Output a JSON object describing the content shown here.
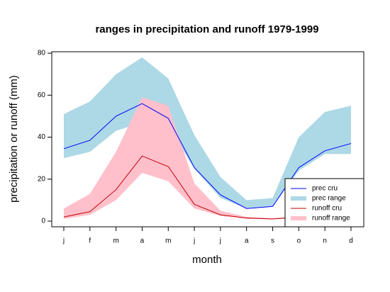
{
  "chart_data": {
    "type": "band-line",
    "title": "ranges in precipitation and runoff 1979-1999",
    "x_label": "month",
    "y_label": "precipitation or runoff (mm)",
    "categories": [
      "j",
      "f",
      "m",
      "a",
      "m",
      "j",
      "j",
      "a",
      "s",
      "o",
      "n",
      "d"
    ],
    "ylim": [
      -2.7,
      80.7
    ],
    "yticks": [
      0,
      20,
      40,
      60,
      80
    ],
    "legend": "bottom-right",
    "series": [
      {
        "name": "prec range",
        "kind": "range",
        "color": "#add8e6",
        "upper": [
          51,
          57,
          70,
          78,
          68,
          41,
          21,
          10,
          11,
          40,
          52,
          55
        ],
        "lower": [
          30,
          33,
          43,
          47,
          45,
          25,
          11,
          6,
          7,
          24,
          32,
          32
        ]
      },
      {
        "name": "runoff range",
        "kind": "range",
        "color": "#ffc0cb",
        "upper": [
          6,
          13,
          33,
          59,
          55,
          18,
          5,
          2,
          1.5,
          2,
          2,
          2
        ],
        "lower": [
          1,
          3,
          10,
          23,
          19,
          6,
          2.5,
          1,
          1,
          1,
          1,
          1
        ]
      },
      {
        "name": "prec cru",
        "kind": "line",
        "color": "#0000ff",
        "values": [
          34.5,
          38.5,
          50,
          56,
          49,
          25.5,
          12.5,
          6,
          7,
          25.5,
          33.5,
          37
        ]
      },
      {
        "name": "runoff cru",
        "kind": "line",
        "color": "#c00000",
        "values": [
          2,
          4.5,
          15,
          31,
          26,
          8,
          3,
          1.5,
          1,
          2,
          2,
          2
        ]
      }
    ],
    "legend_order": [
      2,
      0,
      3,
      1
    ]
  }
}
